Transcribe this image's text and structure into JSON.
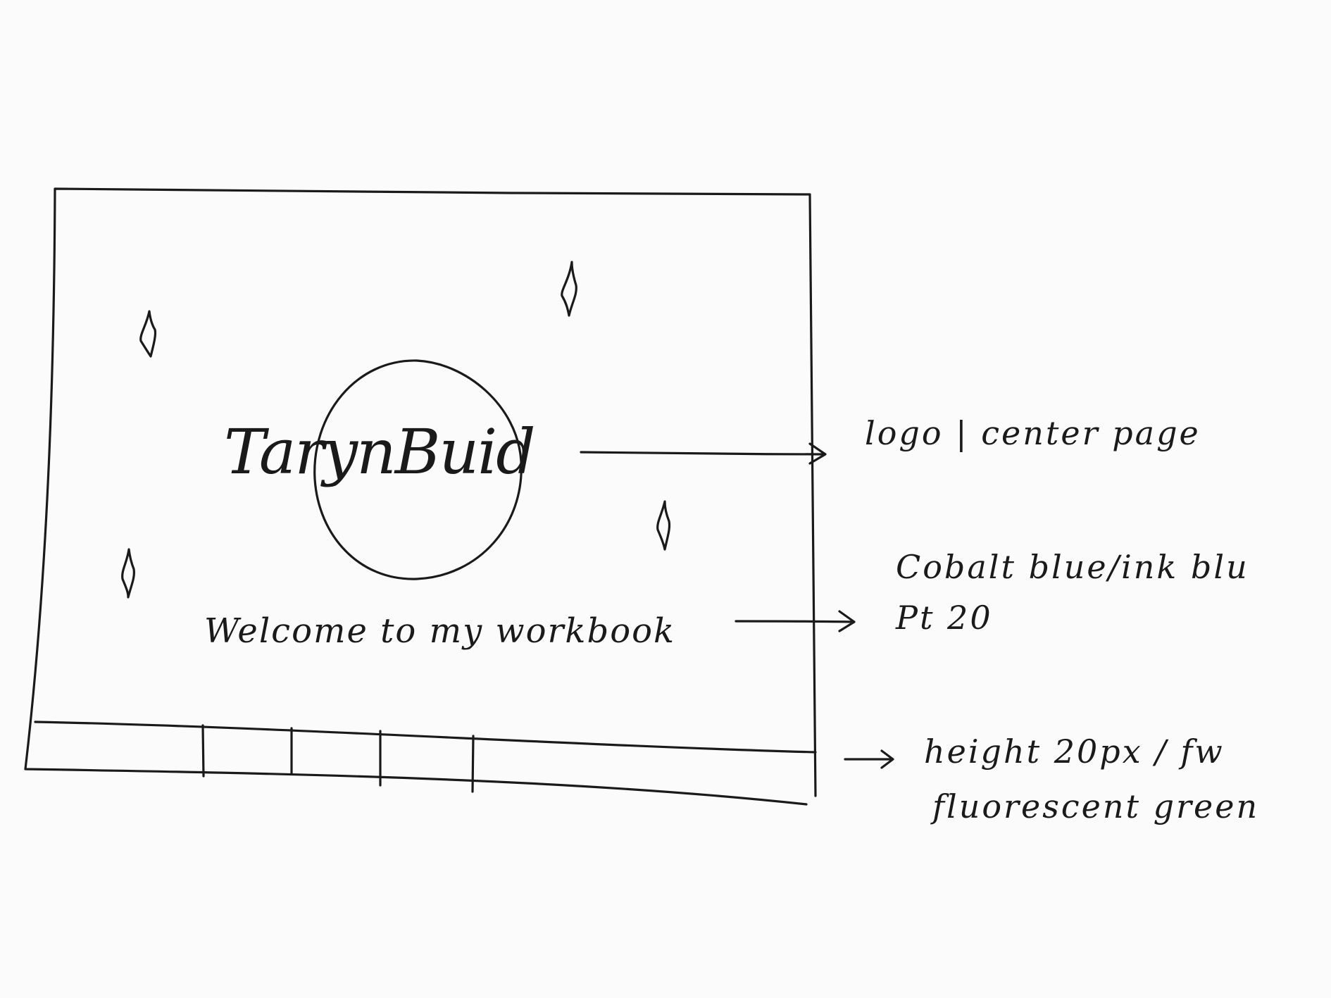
{
  "frame": {
    "logo": {
      "text": "TarynBuid"
    },
    "welcome_text": "Welcome to my workbook",
    "footer_bar": {
      "segments": 5
    }
  },
  "annotations": {
    "logo_note": "logo | center page",
    "color_note_line1": "Cobalt blue/ink blu",
    "color_note_line2": "Pt 20",
    "bar_note_line1": "height 20px / fw",
    "bar_note_line2": "fluorescent green"
  }
}
